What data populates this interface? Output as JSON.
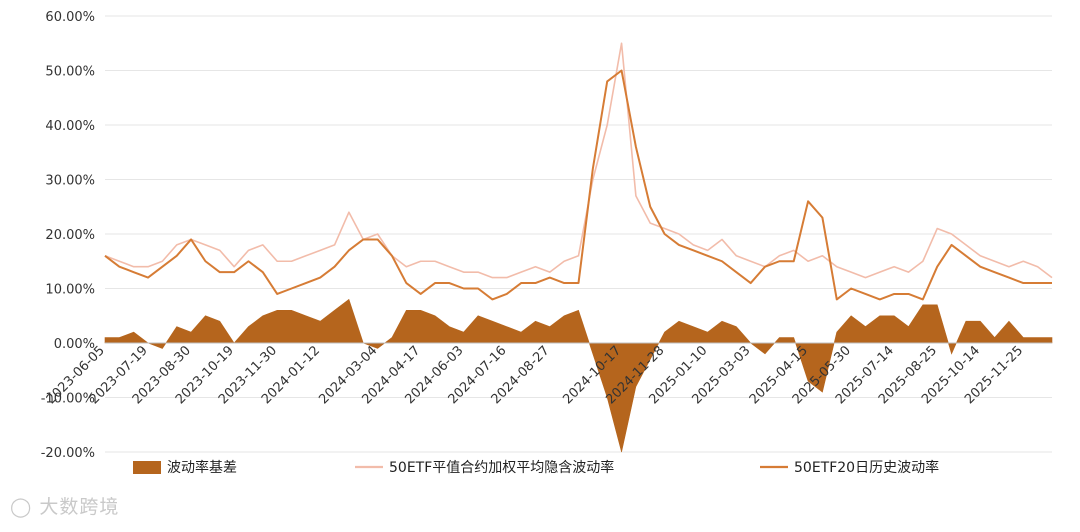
{
  "colors": {
    "spread": "#b5651d",
    "implied": "#f2bcaa",
    "historical": "#d67c35",
    "grid": "#e6e6e6",
    "axis": "#bfbfbf",
    "watermark": "#c9c9c9"
  },
  "watermark": {
    "text": "大数跨境",
    "icon": "brand-logo-icon"
  },
  "chart_data": {
    "type": "line",
    "title": "",
    "xlabel": "",
    "ylabel": "",
    "ylim": [
      -0.2,
      0.6
    ],
    "yticks": [
      -0.2,
      -0.1,
      0.0,
      0.1,
      0.2,
      0.3,
      0.4,
      0.5,
      0.6
    ],
    "ytick_labels": [
      "-20.00%",
      "-10.00%",
      "0.00%",
      "10.00%",
      "20.00%",
      "30.00%",
      "40.00%",
      "50.00%",
      "60.00%"
    ],
    "grid": "horizontal",
    "legend_position": "bottom",
    "x": [
      "2023-06-05",
      "2023-06-20",
      "2023-07-05",
      "2023-07-19",
      "2023-08-02",
      "2023-08-16",
      "2023-08-30",
      "2023-09-13",
      "2023-09-27",
      "2023-10-19",
      "2023-11-02",
      "2023-11-16",
      "2023-11-30",
      "2023-12-14",
      "2023-12-28",
      "2024-01-12",
      "2024-01-26",
      "2024-02-09",
      "2024-02-26",
      "2024-03-04",
      "2024-03-18",
      "2024-04-01",
      "2024-04-17",
      "2024-05-06",
      "2024-05-20",
      "2024-06-03",
      "2024-06-17",
      "2024-07-01",
      "2024-07-16",
      "2024-07-30",
      "2024-08-13",
      "2024-08-27",
      "2024-09-10",
      "2024-09-24",
      "2024-09-30",
      "2024-10-08",
      "2024-10-17",
      "2024-10-31",
      "2024-11-14",
      "2024-11-28",
      "2024-12-12",
      "2024-12-26",
      "2025-01-10",
      "2025-01-24",
      "2025-02-14",
      "2025-03-03",
      "2025-03-17",
      "2025-03-31",
      "2025-04-07",
      "2025-04-15",
      "2025-04-29",
      "2025-05-15",
      "2025-05-30",
      "2025-06-16",
      "2025-06-30",
      "2025-07-14",
      "2025-07-28",
      "2025-08-11",
      "2025-08-25",
      "2025-09-08",
      "2025-09-22",
      "2025-10-14",
      "2025-10-28",
      "2025-11-11",
      "2025-11-25",
      "2025-12-09",
      "2025-12-23"
    ],
    "x_tick_labels": [
      "2023-06-05",
      "2023-07-19",
      "2023-08-30",
      "2023-10-19",
      "2023-11-30",
      "2024-01-12",
      "2024-03-04",
      "2024-04-17",
      "2024-06-03",
      "2024-07-16",
      "2024-08-27",
      "2024-10-17",
      "2024-11-28",
      "2025-01-10",
      "2025-03-03",
      "2025-04-15",
      "2025-05-30",
      "2025-07-14",
      "2025-08-25",
      "2025-10-14",
      "2025-11-25"
    ],
    "series": [
      {
        "name": "波动率基差",
        "kind": "area",
        "values": [
          0.01,
          0.01,
          0.02,
          0.0,
          -0.01,
          0.03,
          0.02,
          0.05,
          0.04,
          0.0,
          0.03,
          0.05,
          0.06,
          0.06,
          0.05,
          0.04,
          0.06,
          0.08,
          0.0,
          -0.01,
          0.01,
          0.06,
          0.06,
          0.05,
          0.03,
          0.02,
          0.05,
          0.04,
          0.03,
          0.02,
          0.04,
          0.03,
          0.05,
          0.06,
          -0.02,
          -0.1,
          -0.2,
          -0.08,
          -0.03,
          0.02,
          0.04,
          0.03,
          0.02,
          0.04,
          0.03,
          0.0,
          -0.02,
          0.01,
          0.01,
          -0.07,
          -0.09,
          0.02,
          0.05,
          0.03,
          0.05,
          0.05,
          0.03,
          0.07,
          0.07,
          -0.02,
          0.04,
          0.04,
          0.01,
          0.04,
          0.01,
          0.01,
          0.01
        ]
      },
      {
        "name": "50ETF平值合约加权平均隐含波动率",
        "kind": "line",
        "values": [
          0.16,
          0.15,
          0.14,
          0.14,
          0.15,
          0.18,
          0.19,
          0.18,
          0.17,
          0.14,
          0.17,
          0.18,
          0.15,
          0.15,
          0.16,
          0.17,
          0.18,
          0.24,
          0.19,
          0.2,
          0.16,
          0.14,
          0.15,
          0.15,
          0.14,
          0.13,
          0.13,
          0.12,
          0.12,
          0.13,
          0.14,
          0.13,
          0.15,
          0.16,
          0.3,
          0.4,
          0.55,
          0.27,
          0.22,
          0.21,
          0.2,
          0.18,
          0.17,
          0.19,
          0.16,
          0.15,
          0.14,
          0.16,
          0.17,
          0.15,
          0.16,
          0.14,
          0.13,
          0.12,
          0.13,
          0.14,
          0.13,
          0.15,
          0.21,
          0.2,
          0.18,
          0.16,
          0.15,
          0.14,
          0.15,
          0.14,
          0.12
        ]
      },
      {
        "name": "50ETF20日历史波动率",
        "kind": "line",
        "values": [
          0.16,
          0.14,
          0.13,
          0.12,
          0.14,
          0.16,
          0.19,
          0.15,
          0.13,
          0.13,
          0.15,
          0.13,
          0.09,
          0.1,
          0.11,
          0.12,
          0.14,
          0.17,
          0.19,
          0.19,
          0.16,
          0.11,
          0.09,
          0.11,
          0.11,
          0.1,
          0.1,
          0.08,
          0.09,
          0.11,
          0.11,
          0.12,
          0.11,
          0.11,
          0.32,
          0.48,
          0.5,
          0.36,
          0.25,
          0.2,
          0.18,
          0.17,
          0.16,
          0.15,
          0.13,
          0.11,
          0.14,
          0.15,
          0.15,
          0.26,
          0.23,
          0.08,
          0.1,
          0.09,
          0.08,
          0.09,
          0.09,
          0.08,
          0.14,
          0.18,
          0.16,
          0.14,
          0.13,
          0.12,
          0.11,
          0.11,
          0.11
        ]
      }
    ]
  }
}
